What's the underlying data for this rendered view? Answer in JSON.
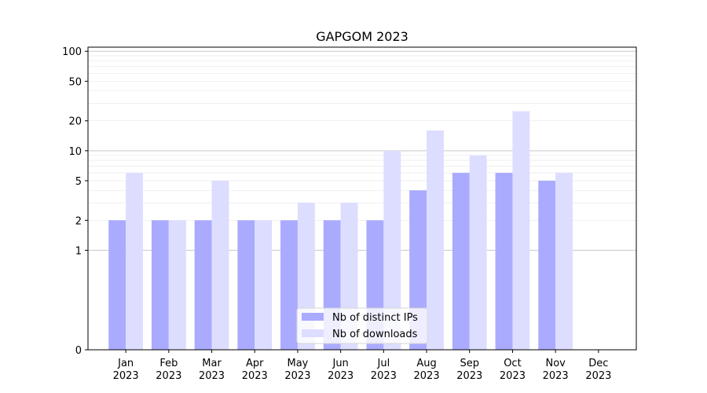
{
  "chart_data": {
    "type": "bar",
    "title": "GAPGOM 2023",
    "xlabel": "",
    "ylabel": "",
    "y_scale": "symlog",
    "ylim": [
      0,
      110
    ],
    "y_ticks": [
      0,
      1,
      2,
      5,
      10,
      20,
      50,
      100
    ],
    "categories": [
      [
        "Jan",
        "2023"
      ],
      [
        "Feb",
        "2023"
      ],
      [
        "Mar",
        "2023"
      ],
      [
        "Apr",
        "2023"
      ],
      [
        "May",
        "2023"
      ],
      [
        "Jun",
        "2023"
      ],
      [
        "Jul",
        "2023"
      ],
      [
        "Aug",
        "2023"
      ],
      [
        "Sep",
        "2023"
      ],
      [
        "Oct",
        "2023"
      ],
      [
        "Nov",
        "2023"
      ],
      [
        "Dec",
        "2023"
      ]
    ],
    "series": [
      {
        "name": "Nb of distinct IPs",
        "color": "#aaaaff",
        "values": [
          2,
          2,
          2,
          2,
          2,
          2,
          2,
          4,
          6,
          6,
          5,
          0
        ]
      },
      {
        "name": "Nb of downloads",
        "color": "#ddddff",
        "values": [
          6,
          2,
          5,
          2,
          3,
          3,
          10,
          16,
          9,
          25,
          6,
          0
        ]
      }
    ],
    "legend_position": "lower-center",
    "grid": "y"
  }
}
